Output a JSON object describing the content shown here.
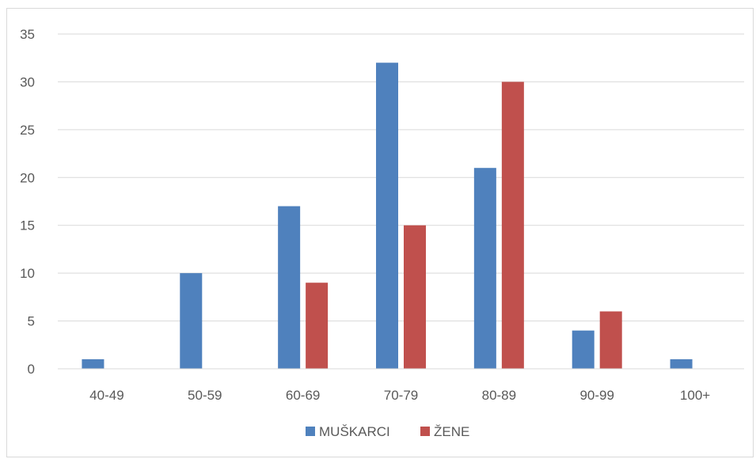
{
  "chart_data": {
    "type": "bar",
    "title": "",
    "xlabel": "",
    "ylabel": "",
    "categories": [
      "40-49",
      "50-59",
      "60-69",
      "70-79",
      "80-89",
      "90-99",
      "100+"
    ],
    "series": [
      {
        "name": "MUŠKARCI",
        "color": "#4f81bd",
        "values": [
          1,
          10,
          17,
          32,
          21,
          4,
          1
        ]
      },
      {
        "name": "ŽENE",
        "color": "#c0504d",
        "values": [
          0,
          0,
          9,
          15,
          30,
          6,
          0
        ]
      }
    ],
    "ylim": [
      0,
      35
    ],
    "yticks": [
      0,
      5,
      10,
      15,
      20,
      25,
      30,
      35
    ],
    "grid": true,
    "legend_position": "bottom"
  }
}
